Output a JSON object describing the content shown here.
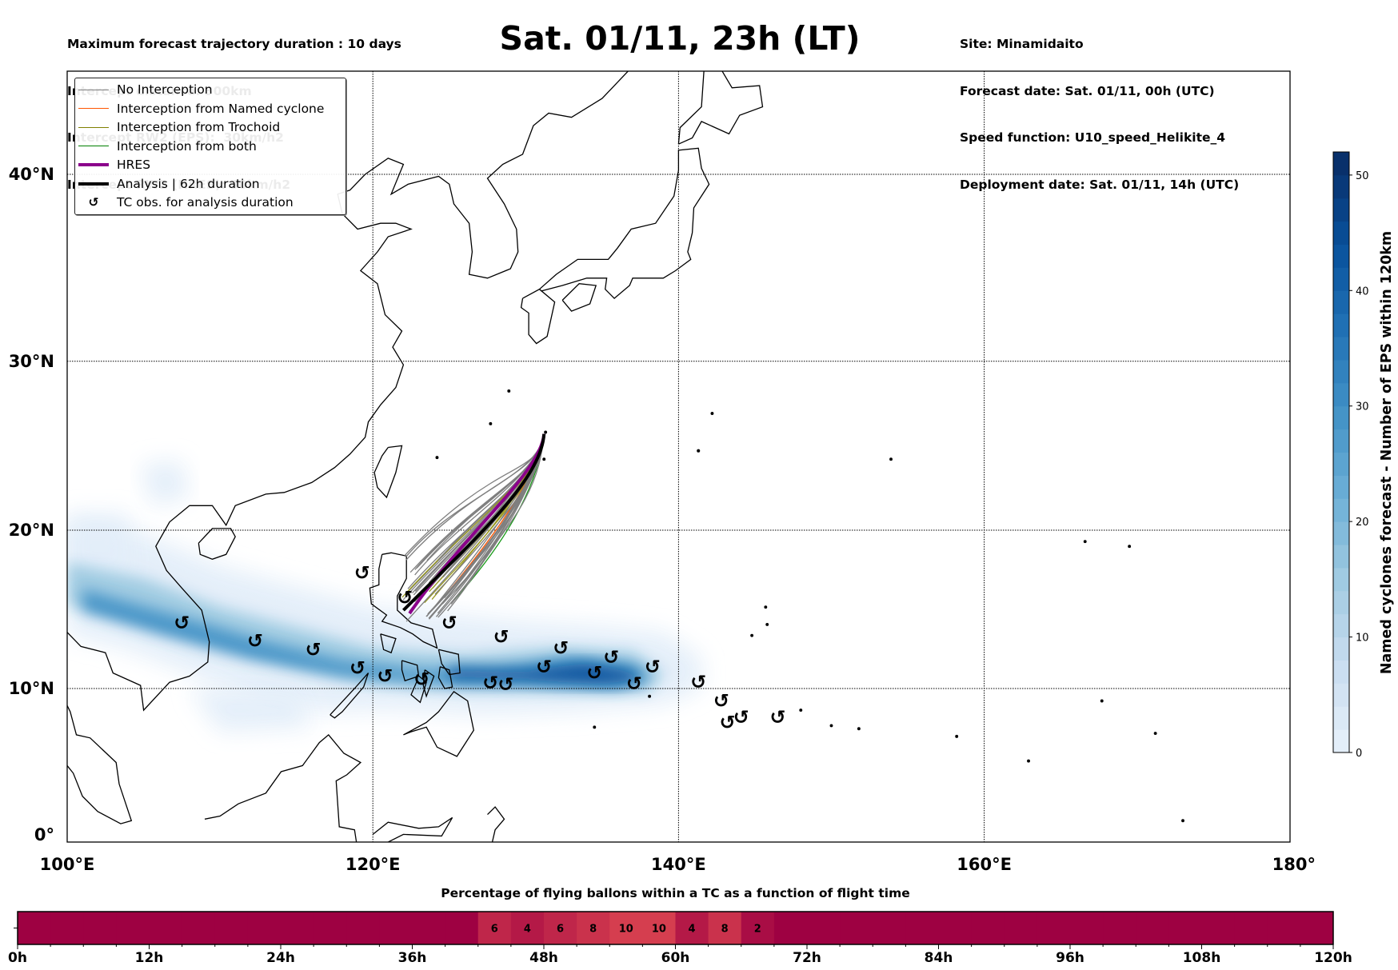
{
  "header": {
    "left_lines": [
      "Maximum forecast trajectory duration : 10 days",
      "Intercept distance: 300km",
      "Intercept RW2 (EPS):  30km/h2",
      "Intercept RW2 (HRES): 30km/h2"
    ],
    "title": "Sat. 01/11, 23h (LT)",
    "right_lines": [
      "Site: Minamidaito",
      "Forecast date: Sat. 01/11, 00h (UTC)",
      "Speed function: U10_speed_Helikite_4",
      "Deployment date: Sat. 01/11, 14h (UTC)"
    ]
  },
  "legend": [
    {
      "label": "No Interception",
      "color": "#808080",
      "kind": "thin"
    },
    {
      "label": "Interception from Named cyclone",
      "color": "#ff5500",
      "kind": "thin"
    },
    {
      "label": "Interception from Trochoid",
      "color": "#808000",
      "kind": "thin"
    },
    {
      "label": "Interception from both",
      "color": "#008000",
      "kind": "thin"
    },
    {
      "label": "HRES",
      "color": "#8b008b",
      "kind": "thick"
    },
    {
      "label": "Analysis | 62h duration",
      "color": "#000000",
      "kind": "thick"
    },
    {
      "label": "TC obs. for analysis duration",
      "color": "#000000",
      "kind": "symbol"
    }
  ],
  "map": {
    "lon_labels": [
      "100°E",
      "120°E",
      "140°E",
      "160°E",
      "180°"
    ],
    "lat_labels": [
      "0°",
      "10°N",
      "20°N",
      "30°N",
      "40°N"
    ],
    "site": {
      "lon": 131.2,
      "lat": 25.8
    },
    "tc_symbol": "↺",
    "tc_obs": [
      [
        107.5,
        14.2
      ],
      [
        112.3,
        13.05
      ],
      [
        116.1,
        12.5
      ],
      [
        119.0,
        11.3
      ],
      [
        120.8,
        10.8
      ],
      [
        123.2,
        10.6
      ],
      [
        119.3,
        17.35
      ],
      [
        122.1,
        15.8
      ],
      [
        125.0,
        14.2
      ],
      [
        128.4,
        13.3
      ],
      [
        131.2,
        11.4
      ],
      [
        132.3,
        12.6
      ],
      [
        134.5,
        11.0
      ],
      [
        135.6,
        12.0
      ],
      [
        137.1,
        10.3
      ],
      [
        138.3,
        11.4
      ],
      [
        127.7,
        10.35
      ],
      [
        128.7,
        10.25
      ],
      [
        141.3,
        10.4
      ],
      [
        142.8,
        9.2
      ],
      [
        143.2,
        7.8
      ],
      [
        144.1,
        8.15
      ],
      [
        146.5,
        8.15
      ]
    ]
  },
  "colorbar": {
    "label": "Named cyclones forecast - Number of EPS within 120km",
    "ticks": [
      "0",
      "10",
      "20",
      "30",
      "40",
      "50"
    ],
    "max": 52,
    "colors": [
      "#e3eef9",
      "#c6dbef",
      "#9ecae1",
      "#6baed6",
      "#4292c6",
      "#2171b5",
      "#08519c",
      "#08306b"
    ]
  },
  "flight_bar": {
    "title": "Percentage of flying ballons within a TC as a function of flight time",
    "bin_hours": 3,
    "values": [
      0,
      0,
      0,
      0,
      0,
      0,
      0,
      0,
      0,
      0,
      0,
      0,
      0,
      0,
      6,
      4,
      6,
      8,
      10,
      10,
      4,
      8,
      2,
      0,
      0,
      0,
      0,
      0,
      0,
      0,
      0,
      0,
      0,
      0,
      0,
      0,
      0,
      0,
      0,
      0
    ],
    "tick_labels": [
      "0h",
      "12h",
      "24h",
      "36h",
      "48h",
      "60h",
      "72h",
      "84h",
      "96h",
      "108h",
      "120h"
    ],
    "color_zero": "#9e0142",
    "color_max": "#d53e4f"
  }
}
